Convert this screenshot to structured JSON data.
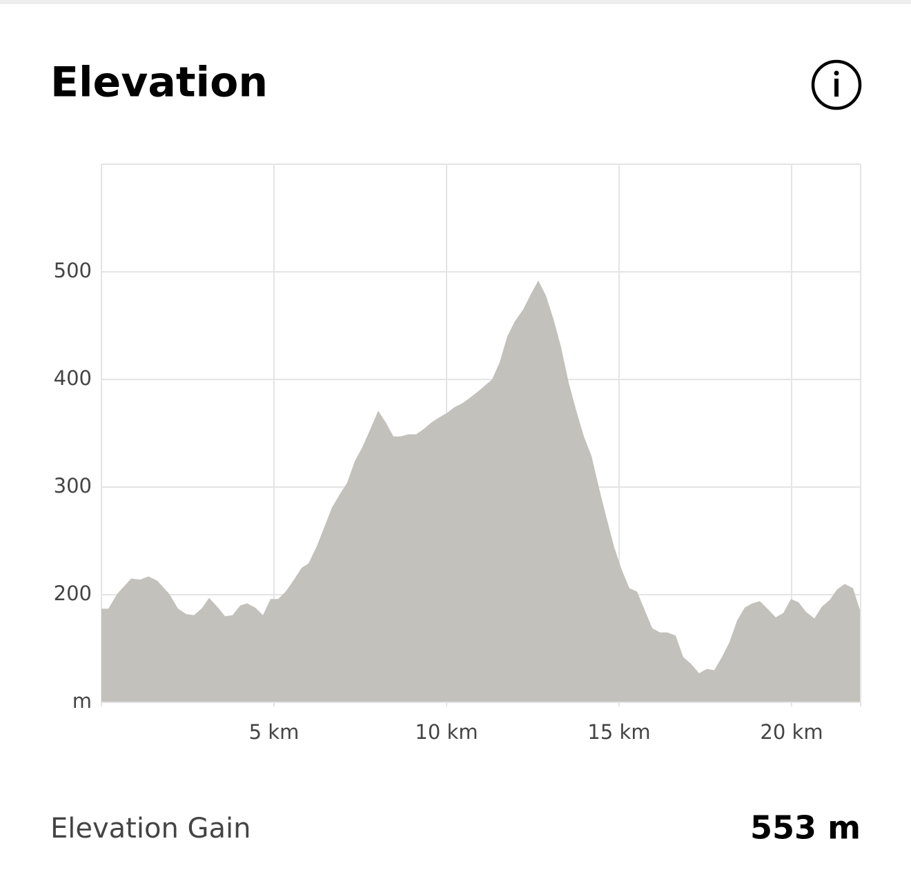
{
  "title": "Elevation",
  "chart_data": {
    "type": "area",
    "color": "#c2c1bc",
    "grid": true,
    "x": [
      0,
      0.2,
      0.46,
      0.86,
      1.12,
      1.36,
      1.62,
      1.96,
      2.22,
      2.46,
      2.68,
      2.9,
      3.12,
      3.38,
      3.58,
      3.8,
      4.02,
      4.22,
      4.46,
      4.68,
      4.9,
      5.12,
      5.34,
      5.58,
      5.8,
      6.0,
      6.24,
      6.46,
      6.68,
      6.9,
      7.12,
      7.34,
      7.56,
      7.78,
      8.02,
      8.26,
      8.46,
      8.66,
      8.9,
      9.12,
      9.34,
      9.56,
      9.8,
      10.02,
      10.22,
      10.46,
      10.68,
      10.88,
      11.1,
      11.32,
      11.54,
      11.76,
      11.98,
      12.22,
      12.44,
      12.66,
      12.88,
      13.1,
      13.32,
      13.54,
      13.76,
      13.98,
      14.2,
      14.42,
      14.64,
      14.86,
      15.08,
      15.3,
      15.52,
      15.74,
      15.96,
      16.18,
      16.4,
      16.64,
      16.86,
      17.08,
      17.32,
      17.54,
      17.76,
      17.98,
      18.2,
      18.42,
      18.64,
      18.86,
      19.08,
      19.3,
      19.54,
      19.76,
      19.98,
      20.2,
      20.42,
      20.66,
      20.88,
      21.1,
      21.32,
      21.54,
      21.78,
      21.98
    ],
    "values": [
      187,
      187,
      201,
      215,
      214,
      217,
      213,
      201,
      187,
      182,
      181,
      187,
      197,
      188,
      180,
      181,
      190,
      192,
      188,
      181,
      196,
      196,
      203,
      214,
      225,
      229,
      245,
      263,
      281,
      293,
      304,
      324,
      337,
      353,
      371,
      359,
      347,
      347,
      349,
      349,
      354,
      360,
      365,
      369,
      374,
      378,
      383,
      388,
      394,
      400,
      416,
      440,
      454,
      465,
      479,
      492,
      478,
      456,
      430,
      397,
      371,
      347,
      329,
      299,
      271,
      244,
      223,
      206,
      203,
      186,
      169,
      165,
      165,
      162,
      142,
      136,
      127,
      131,
      130,
      142,
      156,
      176,
      188,
      192,
      194,
      187,
      179,
      183,
      196,
      193,
      184,
      178,
      189,
      195,
      205,
      210,
      206,
      186
    ],
    "xlim": [
      0,
      22
    ],
    "xticks": [
      {
        "value": 5,
        "label": "5 km"
      },
      {
        "value": 10,
        "label": "10 km"
      },
      {
        "value": 15,
        "label": "15 km"
      },
      {
        "value": 20,
        "label": "20 km"
      }
    ],
    "ylim": [
      100,
      600
    ],
    "yticks": [
      {
        "value": 100,
        "label": "m"
      },
      200,
      300,
      400,
      500
    ]
  },
  "footer": {
    "label": "Elevation Gain",
    "value": "553 m"
  }
}
